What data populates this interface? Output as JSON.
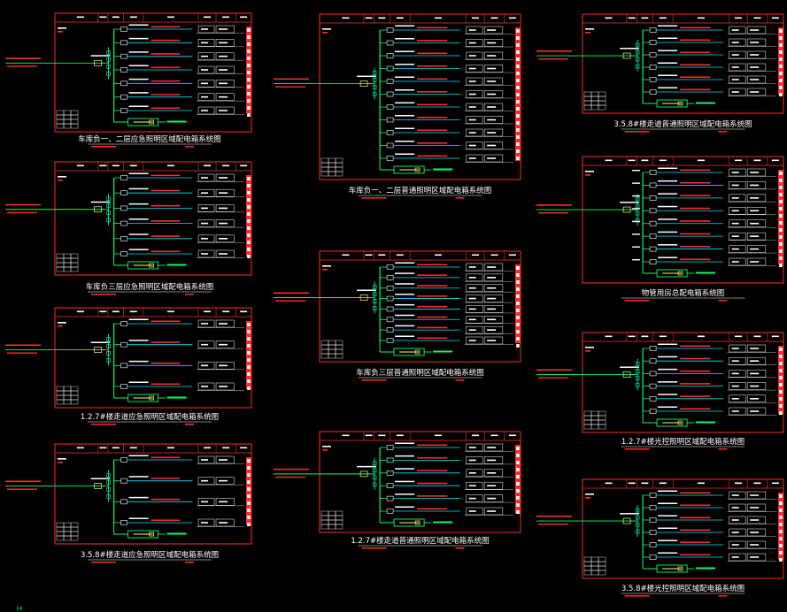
{
  "colors": {
    "background": "#000000",
    "frame": "#ff2a2a",
    "bus": "#00ff66",
    "cable": "#00e0ff",
    "text": "#ffffff",
    "breaker": "#ffff66",
    "contactor": "#ff40ff",
    "label_block": "#ff2a2a"
  },
  "page_marker": "14",
  "diagrams": [
    {
      "id": "d1",
      "title": "车库负一、二层应急照明区域配电箱系统图",
      "circuits": 7
    },
    {
      "id": "d2",
      "title": "车库负三层应急照明区域配电箱系统图",
      "circuits": 6
    },
    {
      "id": "d3",
      "title": "1.2.7#楼走道应急照明区域配电箱系统图",
      "circuits": 4
    },
    {
      "id": "d4",
      "title": "3.5.8#楼走道应急照明区域配电箱系统图",
      "circuits": 4
    },
    {
      "id": "d5",
      "title": "车库负一、二层普通照明区域配电箱系统图",
      "circuits": 11
    },
    {
      "id": "d6",
      "title": "车库负三层普通照明区域配电箱系统图",
      "circuits": 8
    },
    {
      "id": "d7",
      "title": "1.2.7#楼走道普通照明区域配电箱系统图",
      "circuits": 6
    },
    {
      "id": "d8",
      "title": "3.5.8#楼走道普通照明区域配电箱系统图",
      "circuits": 6
    },
    {
      "id": "d9",
      "title": "物管用房总配电箱系统图",
      "circuits": 8
    },
    {
      "id": "d10",
      "title": "1.2.7#楼光控照明区域配电箱系统图",
      "circuits": 6
    },
    {
      "id": "d11",
      "title": "3.5.8#楼光控照明区域配电箱系统图",
      "circuits": 6
    }
  ]
}
